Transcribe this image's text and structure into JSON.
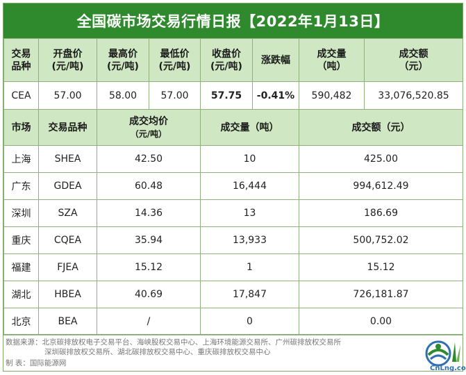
{
  "title": "全国碳市场交易行情日报【2022年1月13日】",
  "national": {
    "headers": [
      [
        "交易",
        "品种"
      ],
      [
        "开盘价",
        "(元/吨)"
      ],
      [
        "最高价",
        "(元/吨)"
      ],
      [
        "最低价",
        "(元/吨)"
      ],
      [
        "收盘价",
        "(元/吨)"
      ],
      [
        "涨跌幅",
        ""
      ],
      [
        "成交量",
        "（吨）"
      ],
      [
        "成交额",
        "（元）"
      ]
    ],
    "row": [
      "CEA",
      "57.00",
      "58.00",
      "57.00",
      "57.75",
      "-0.41%",
      "590,482",
      "33,076,520.85"
    ]
  },
  "regional": {
    "headers": {
      "market": "市场",
      "product": "交易品种",
      "avg_price": "成交均价",
      "avg_price_unit": "（元/吨）",
      "volume": "成交量（吨）",
      "amount": "成交额（元）"
    },
    "rows": [
      {
        "market": "上海",
        "product": "SHEA",
        "avg_price": "42.50",
        "volume": "10",
        "amount": "425.00"
      },
      {
        "market": "广东",
        "product": "GDEA",
        "avg_price": "60.48",
        "volume": "16,444",
        "amount": "994,612.49"
      },
      {
        "market": "深圳",
        "product": "SZA",
        "avg_price": "14.36",
        "volume": "13",
        "amount": "186.69"
      },
      {
        "market": "重庆",
        "product": "CQEA",
        "avg_price": "35.94",
        "volume": "13,933",
        "amount": "500,752.02"
      },
      {
        "market": "福建",
        "product": "FJEA",
        "avg_price": "15.12",
        "volume": "1",
        "amount": "15.12"
      },
      {
        "market": "湖北",
        "product": "HBEA",
        "avg_price": "40.69",
        "volume": "17,847",
        "amount": "726,181.87"
      },
      {
        "market": "北京",
        "product": "BEA",
        "avg_price": "/",
        "volume": "0",
        "amount": "0.00"
      }
    ]
  },
  "footer": {
    "source_line1": "数据来源：北京碳排放权电子交易平台、海峡股权交易中心、上海环境能源交易所、广州碳排放权交易所",
    "source_line2": "深圳碳排放权交易所、湖北碳排放权交易中心、重庆碳排放权交易中心",
    "maker": "制      表：国际能源网"
  },
  "logo": {
    "text": "CnLng.com"
  },
  "colors": {
    "header_bar": "#2f8a2e",
    "header_cells": "#cfe7c2",
    "highlight": "#e0302a"
  }
}
